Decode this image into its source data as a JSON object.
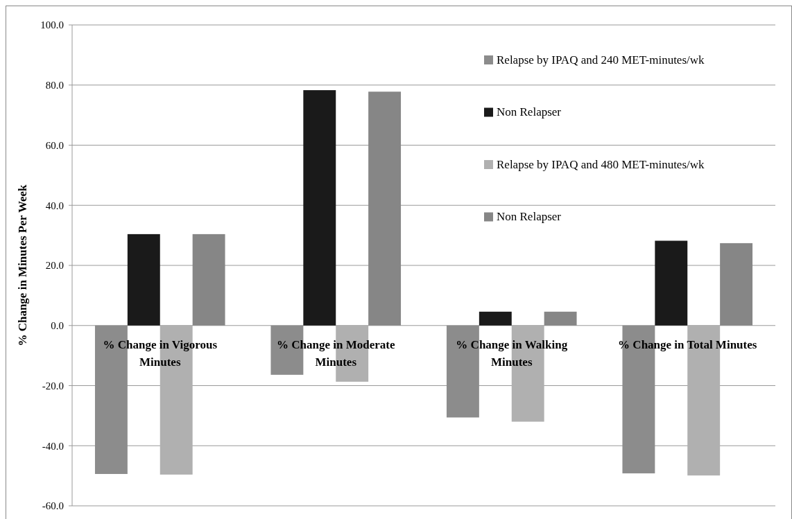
{
  "chart_data": {
    "type": "bar",
    "ylabel": "% Change in Minutes Per Week",
    "categories": [
      "% Change in Vigorous Minutes",
      "% Change in Moderate Minutes",
      "% Change in Walking Minutes",
      "% Change in Total Minutes"
    ],
    "series": [
      {
        "name": "Relapse by IPAQ and 240 MET-minutes/wk",
        "color": "#8c8c8c",
        "values": [
          -49.4,
          -16.4,
          -30.6,
          -49.2
        ]
      },
      {
        "name": "Non Relapser",
        "color": "#1a1a1a",
        "values": [
          30.4,
          78.3,
          4.6,
          28.2
        ]
      },
      {
        "name": "Relapse by IPAQ and 480 MET-minutes/wk",
        "color": "#b0b0b0",
        "values": [
          -49.6,
          -18.7,
          -32.0,
          -49.9
        ]
      },
      {
        "name": "Non Relapser",
        "color": "#868686",
        "values": [
          30.4,
          77.8,
          4.6,
          27.4
        ]
      }
    ],
    "ylim": [
      -60,
      100
    ],
    "yticks": [
      {
        "value": -60,
        "label": "-60.0"
      },
      {
        "value": -40,
        "label": "-40.0"
      },
      {
        "value": -20,
        "label": "-20.0"
      },
      {
        "value": 0,
        "label": "0.0"
      },
      {
        "value": 20,
        "label": "20.0"
      },
      {
        "value": 40,
        "label": "40.0"
      },
      {
        "value": 60,
        "label": "60.0"
      },
      {
        "value": 80,
        "label": "80.0"
      },
      {
        "value": 100,
        "label": "100.0"
      }
    ],
    "grid": "y",
    "legend": "top right"
  }
}
